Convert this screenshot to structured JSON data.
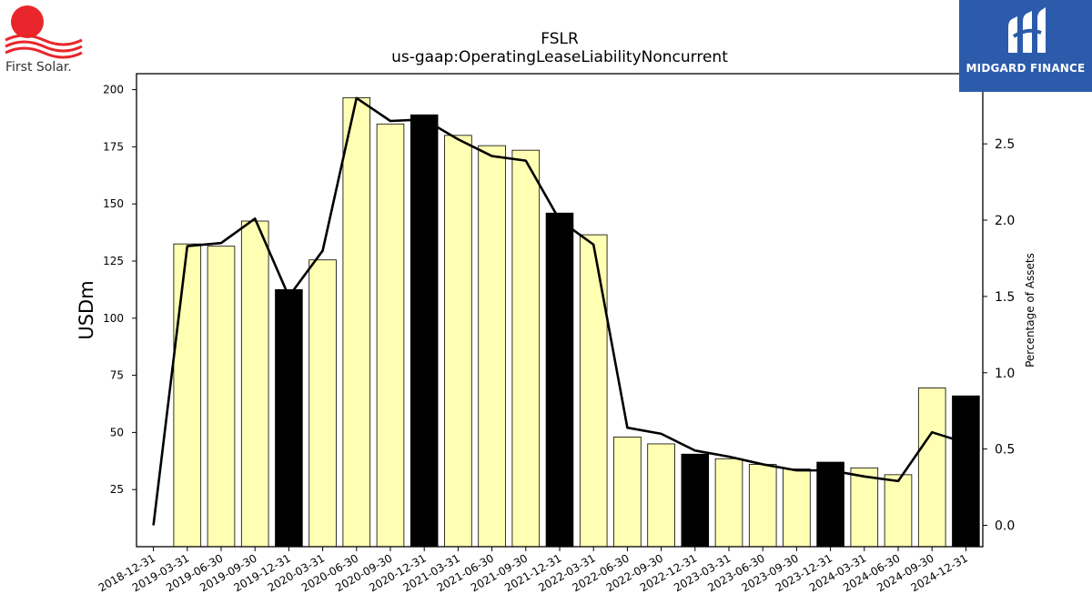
{
  "logos": {
    "left_text": "First Solar.",
    "right_text": "MIDGARD FINANCE"
  },
  "colors": {
    "bar_regular": "#ffffb3",
    "bar_year_end": "#000000",
    "line": "#000000",
    "logo_red": "#e8262b",
    "logo_blue": "#2c5bab"
  },
  "chart_data": {
    "type": "bar",
    "title": "FSLR",
    "subtitle": "us-gaap:OperatingLeaseLiabilityNoncurrent",
    "ylabel": "USDm",
    "y2label": "Percentage of Assets",
    "categories": [
      "2018-12-31",
      "2019-03-31",
      "2019-06-30",
      "2019-09-30",
      "2019-12-31",
      "2020-03-31",
      "2020-06-30",
      "2020-09-30",
      "2020-12-31",
      "2021-03-31",
      "2021-06-30",
      "2021-09-30",
      "2021-12-31",
      "2022-03-31",
      "2022-06-30",
      "2022-09-30",
      "2022-12-31",
      "2023-03-31",
      "2023-06-30",
      "2023-09-30",
      "2023-12-31",
      "2024-03-31",
      "2024-06-30",
      "2024-09-30",
      "2024-12-31"
    ],
    "series": [
      {
        "axis": "left",
        "kind": "bar",
        "values": [
          null,
          132.5,
          131.5,
          142.5,
          112.5,
          125.5,
          196.5,
          185,
          189,
          180,
          175.5,
          173.5,
          146,
          136.5,
          48,
          45,
          40.5,
          38.5,
          36,
          34,
          37,
          34.5,
          31.5,
          69.5,
          66
        ],
        "year_end": [
          false,
          false,
          false,
          false,
          true,
          false,
          false,
          false,
          true,
          false,
          false,
          false,
          true,
          false,
          false,
          false,
          true,
          false,
          false,
          false,
          true,
          false,
          false,
          false,
          true
        ]
      },
      {
        "axis": "right",
        "kind": "line",
        "values": [
          0.0,
          1.83,
          1.85,
          2.01,
          1.5,
          1.8,
          2.8,
          2.65,
          2.66,
          2.53,
          2.42,
          2.39,
          2.0,
          1.84,
          0.64,
          0.6,
          0.49,
          0.45,
          0.4,
          0.36,
          0.36,
          0.32,
          0.29,
          0.61,
          0.54
        ]
      }
    ],
    "ylim": [
      0,
      207
    ],
    "yticks": [
      25,
      50,
      75,
      100,
      125,
      150,
      175,
      200
    ],
    "y2lim": [
      -0.14,
      2.96
    ],
    "y2ticks": [
      0.0,
      0.5,
      1.0,
      1.5,
      2.0,
      2.5
    ],
    "grid": false,
    "legend": "none"
  }
}
